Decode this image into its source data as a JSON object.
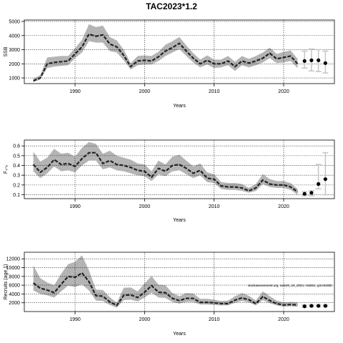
{
  "title": "TAC2023*1.2",
  "colors": {
    "band": "#b4b4b4",
    "line": "#222222",
    "grid": "#000000",
    "projection": "#c8c8c8",
    "point": "#000000"
  },
  "chart_data": [
    {
      "type": "line",
      "name": "ssb",
      "ylabel": "SSB",
      "xlabel": "Years",
      "xlim": [
        1982.7,
        2027.3
      ],
      "ylim": [
        600,
        5100
      ],
      "xticks": [
        1990,
        2000,
        2010,
        2020
      ],
      "yticks": [
        1000,
        2000,
        3000,
        4000,
        5000
      ],
      "grid": true,
      "x": [
        1984,
        1985,
        1986,
        1987,
        1988,
        1989,
        1990,
        1991,
        1992,
        1993,
        1994,
        1995,
        1996,
        1997,
        1998,
        1999,
        2000,
        2001,
        2002,
        2003,
        2004,
        2005,
        2006,
        2007,
        2008,
        2009,
        2010,
        2011,
        2012,
        2013,
        2014,
        2015,
        2016,
        2017,
        2018,
        2019,
        2020,
        2021,
        2022
      ],
      "median": [
        800,
        1000,
        2000,
        2100,
        2150,
        2200,
        2700,
        3200,
        4100,
        3950,
        4050,
        3400,
        3200,
        2600,
        1800,
        2200,
        2250,
        2200,
        2500,
        2900,
        3150,
        3450,
        2900,
        2400,
        2000,
        2250,
        2000,
        2000,
        2200,
        1800,
        2200,
        2050,
        2200,
        2400,
        2750,
        2350,
        2450,
        2550,
        2000
      ],
      "lower": [
        700,
        900,
        1700,
        1800,
        1850,
        1900,
        2400,
        2800,
        3600,
        3500,
        3500,
        2900,
        2800,
        2250,
        1600,
        1900,
        1950,
        1950,
        2200,
        2550,
        2800,
        3050,
        2550,
        2100,
        1750,
        1950,
        1700,
        1750,
        1900,
        1500,
        1900,
        1750,
        1900,
        2100,
        2400,
        2050,
        2100,
        2200,
        1700
      ],
      "upper": [
        950,
        1200,
        2450,
        2500,
        2550,
        2550,
        3100,
        3700,
        4800,
        4600,
        4700,
        3900,
        3650,
        3000,
        2050,
        2550,
        2600,
        2550,
        2850,
        3350,
        3600,
        3900,
        3300,
        2750,
        2300,
        2600,
        2300,
        2300,
        2550,
        2150,
        2550,
        2350,
        2550,
        2800,
        3150,
        2700,
        2850,
        2950,
        2350
      ],
      "projection": {
        "x": [
          2023,
          2024,
          2025,
          2026
        ],
        "points": [
          2200,
          2250,
          2250,
          2050
        ],
        "lower": [
          1700,
          1500,
          1450,
          1350
        ],
        "upper": [
          2900,
          3050,
          3000,
          2900
        ]
      }
    },
    {
      "type": "line",
      "name": "f",
      "ylabel": "F₄-₆",
      "xlabel": "Years",
      "xlim": [
        1982.7,
        2027.3
      ],
      "ylim": [
        0.06,
        0.66
      ],
      "xticks": [
        1990,
        2000,
        2010,
        2020
      ],
      "yticks": [
        0.1,
        0.2,
        0.3,
        0.4,
        0.5,
        0.6
      ],
      "grid": true,
      "x": [
        1984,
        1985,
        1986,
        1987,
        1988,
        1989,
        1990,
        1991,
        1992,
        1993,
        1994,
        1995,
        1996,
        1997,
        1998,
        1999,
        2000,
        2001,
        2002,
        2003,
        2004,
        2005,
        2006,
        2007,
        2008,
        2009,
        2010,
        2011,
        2012,
        2013,
        2014,
        2015,
        2016,
        2017,
        2018,
        2019,
        2020,
        2021,
        2022
      ],
      "median": [
        0.41,
        0.33,
        0.38,
        0.46,
        0.41,
        0.42,
        0.39,
        0.47,
        0.53,
        0.53,
        0.42,
        0.45,
        0.41,
        0.4,
        0.38,
        0.35,
        0.34,
        0.28,
        0.37,
        0.34,
        0.4,
        0.41,
        0.37,
        0.32,
        0.35,
        0.27,
        0.26,
        0.19,
        0.18,
        0.18,
        0.17,
        0.14,
        0.17,
        0.25,
        0.21,
        0.2,
        0.2,
        0.18,
        0.13
      ],
      "lower": [
        0.34,
        0.27,
        0.32,
        0.39,
        0.34,
        0.35,
        0.33,
        0.4,
        0.45,
        0.45,
        0.36,
        0.38,
        0.35,
        0.34,
        0.32,
        0.3,
        0.29,
        0.24,
        0.31,
        0.29,
        0.34,
        0.35,
        0.31,
        0.27,
        0.3,
        0.23,
        0.22,
        0.16,
        0.15,
        0.15,
        0.14,
        0.12,
        0.14,
        0.21,
        0.18,
        0.17,
        0.17,
        0.15,
        0.1
      ],
      "upper": [
        0.54,
        0.44,
        0.48,
        0.57,
        0.52,
        0.53,
        0.49,
        0.58,
        0.64,
        0.62,
        0.52,
        0.55,
        0.5,
        0.48,
        0.46,
        0.42,
        0.41,
        0.34,
        0.45,
        0.41,
        0.49,
        0.51,
        0.45,
        0.39,
        0.42,
        0.33,
        0.31,
        0.23,
        0.22,
        0.22,
        0.21,
        0.17,
        0.21,
        0.31,
        0.26,
        0.24,
        0.24,
        0.22,
        0.16
      ],
      "projection": {
        "x": [
          2023,
          2024,
          2025,
          2026
        ],
        "points": [
          0.11,
          0.12,
          0.21,
          0.26
        ],
        "lower": [
          0.09,
          0.09,
          0.16,
          0.1
        ],
        "upper": [
          0.13,
          0.14,
          0.41,
          0.53
        ]
      }
    },
    {
      "type": "line",
      "name": "recruits",
      "ylabel": "Recruits (age 1)",
      "xlabel": "Years",
      "xlim": [
        1982.7,
        2027.3
      ],
      "ylim": [
        0,
        13500
      ],
      "xticks": [
        1990,
        2000,
        2010,
        2020
      ],
      "yticks": [
        2000,
        4000,
        6000,
        8000,
        10000,
        12000
      ],
      "grid": true,
      "x": [
        1984,
        1985,
        1986,
        1987,
        1988,
        1989,
        1990,
        1991,
        1992,
        1993,
        1994,
        1995,
        1996,
        1997,
        1998,
        1999,
        2000,
        2001,
        2002,
        2003,
        2004,
        2005,
        2006,
        2007,
        2008,
        2009,
        2010,
        2011,
        2012,
        2013,
        2014,
        2015,
        2016,
        2017,
        2018,
        2019,
        2020,
        2021,
        2022
      ],
      "median": [
        6500,
        5300,
        4900,
        4300,
        6200,
        8000,
        7800,
        8800,
        6800,
        3600,
        3500,
        2200,
        1400,
        3700,
        3800,
        3200,
        4400,
        5900,
        4400,
        4300,
        3000,
        2500,
        3000,
        3000,
        2100,
        2100,
        2000,
        1800,
        1800,
        2600,
        3100,
        2700,
        1800,
        3400,
        2500,
        1800,
        1500,
        1600,
        1500
      ],
      "lower": [
        4800,
        4000,
        3700,
        3200,
        4600,
        5900,
        5600,
        6200,
        4800,
        2500,
        2400,
        1500,
        900,
        2600,
        2700,
        2300,
        3200,
        4300,
        3200,
        3100,
        2200,
        1800,
        2200,
        2200,
        1600,
        1600,
        1500,
        1400,
        1400,
        2000,
        2400,
        2100,
        1400,
        2600,
        1900,
        1400,
        1100,
        1200,
        1100
      ],
      "upper": [
        10500,
        7600,
        6600,
        6000,
        8600,
        10800,
        11300,
        12800,
        9400,
        5000,
        4900,
        3300,
        2000,
        5400,
        5500,
        4600,
        6400,
        8100,
        6100,
        6000,
        4200,
        3500,
        4200,
        4100,
        2900,
        2900,
        2700,
        2400,
        2500,
        3500,
        4200,
        3600,
        2500,
        4600,
        3500,
        2500,
        2100,
        2200,
        2100
      ],
      "projection": {
        "x": [
          2023,
          2024,
          2025,
          2026
        ],
        "points": [
          1200,
          1300,
          1300,
          1300
        ],
        "lower": [
          1000,
          1100,
          1100,
          1100
        ],
        "upper": [
          1500,
          1500,
          1500,
          1500
        ]
      },
      "annotation": "stockassessment.org, sole20_24_2024, r18261, git:c9c85b"
    }
  ]
}
